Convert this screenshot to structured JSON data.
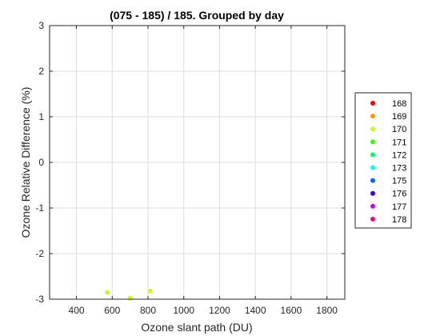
{
  "chart_data": {
    "type": "scatter",
    "title": "(075 - 185) / 185.  Grouped by day",
    "xlabel": "Ozone slant path (DU)",
    "ylabel": "Ozone Relative Difference (%)",
    "xlim": [
      250,
      1900
    ],
    "ylim": [
      -3,
      3
    ],
    "xticks": [
      400,
      600,
      800,
      1000,
      1200,
      1400,
      1600,
      1800
    ],
    "yticks": [
      -3,
      -2,
      -1,
      0,
      1,
      2,
      3
    ],
    "grid": true,
    "legend_position": "right",
    "series": [
      {
        "name": "168",
        "color": "#ff0000",
        "points": []
      },
      {
        "name": "169",
        "color": "#ff9900",
        "points": []
      },
      {
        "name": "170",
        "color": "#ccff00",
        "points": [
          [
            572,
            -2.85
          ],
          [
            700,
            -2.98
          ],
          [
            812,
            -2.82
          ]
        ]
      },
      {
        "name": "171",
        "color": "#33ff00",
        "points": []
      },
      {
        "name": "172",
        "color": "#00ff66",
        "points": []
      },
      {
        "name": "173",
        "color": "#00ffff",
        "points": []
      },
      {
        "name": "175",
        "color": "#0066ff",
        "points": []
      },
      {
        "name": "176",
        "color": "#3300ff",
        "points": []
      },
      {
        "name": "177",
        "color": "#cc00ff",
        "points": []
      },
      {
        "name": "178",
        "color": "#ff0099",
        "points": []
      }
    ]
  }
}
